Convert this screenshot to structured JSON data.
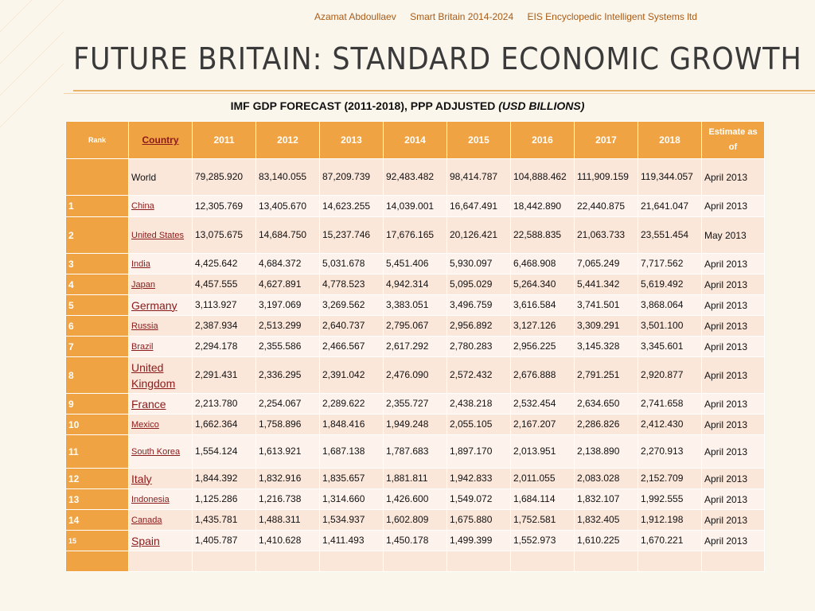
{
  "header": {
    "author": "Azamat Abdoullaev",
    "project": "Smart  Britain 2014-2024",
    "org": "EIS Encyclopedic Intelligent Systems ltd"
  },
  "title": "FUTURE BRITAIN: STANDARD ECONOMIC GROWTH",
  "subtitle": {
    "main": "IMF   GDP FORECAST (2011-2018), PPP ADJUSTED ",
    "italic": "(USD BILLIONS)"
  },
  "colors": {
    "header_bg": "#f0a342",
    "row_a": "#fbe6da",
    "row_b": "#fdf2ec",
    "country_link": "#8b1a1a"
  },
  "table": {
    "columns": [
      "Rank",
      "Country",
      "2011",
      "2012",
      "2013",
      "2014",
      "2015",
      "2016",
      "2017",
      "2018",
      "Estimate as of"
    ],
    "rows": [
      {
        "rank": "",
        "country": "World",
        "values": [
          "79,285.920",
          "83,140.055",
          "87,209.739",
          "92,483.482",
          "98,414.787",
          "104,888.462",
          "111,909.159",
          "119,344.057"
        ],
        "est": "April 2013"
      },
      {
        "rank": "1",
        "country": "China",
        "values": [
          "12,305.769",
          "13,405.670",
          "14,623.255",
          "14,039.001",
          "16,647.491",
          "18,442.890",
          "22,440.875",
          "21,641.047"
        ],
        "est": "April 2013"
      },
      {
        "rank": "2",
        "country": "United States",
        "values": [
          "13,075.675",
          "14,684.750",
          "15,237.746",
          "17,676.165",
          "20,126.421",
          "22,588.835",
          "21,063.733",
          "23,551.454"
        ],
        "est": "May 2013"
      },
      {
        "rank": "3",
        "country": "India",
        "values": [
          "4,425.642",
          "4,684.372",
          "5,031.678",
          "5,451.406",
          "5,930.097",
          "6,468.908",
          "7,065.249",
          "7,717.562"
        ],
        "est": "April 2013"
      },
      {
        "rank": "4",
        "country": "Japan",
        "values": [
          "4,457.555",
          "4,627.891",
          "4,778.523",
          "4,942.314",
          "5,095.029",
          "5,264.340",
          "5,441.342",
          "5,619.492"
        ],
        "est": "April 2013"
      },
      {
        "rank": "5",
        "country": "Germany",
        "values": [
          "3,113.927",
          "3,197.069",
          "3,269.562",
          "3,383.051",
          "3,496.759",
          "3,616.584",
          "3,741.501",
          "3,868.064"
        ],
        "est": "April 2013"
      },
      {
        "rank": "6",
        "country": "Russia",
        "values": [
          "2,387.934",
          "2,513.299",
          "2,640.737",
          "2,795.067",
          "2,956.892",
          "3,127.126",
          "3,309.291",
          "3,501.100"
        ],
        "est": "April 2013"
      },
      {
        "rank": "7",
        "country": "Brazil",
        "values": [
          "2,294.178",
          "2,355.586",
          "2,466.567",
          "2,617.292",
          "2,780.283",
          "2,956.225",
          "3,145.328",
          "3,345.601"
        ],
        "est": "April 2013"
      },
      {
        "rank": "8",
        "country": "United Kingdom",
        "values": [
          "2,291.431",
          "2,336.295",
          "2,391.042",
          "2,476.090",
          "2,572.432",
          "2,676.888",
          "2,791.251",
          "2,920.877"
        ],
        "est": "April 2013"
      },
      {
        "rank": "9",
        "country": "France",
        "values": [
          "2,213.780",
          "2,254.067",
          "2,289.622",
          "2,355.727",
          "2,438.218",
          "2,532.454",
          "2,634.650",
          "2,741.658"
        ],
        "est": "April 2013"
      },
      {
        "rank": "10",
        "country": "Mexico",
        "values": [
          "1,662.364",
          "1,758.896",
          "1,848.416",
          "1,949.248",
          "2,055.105",
          "2,167.207",
          "2,286.826",
          "2,412.430"
        ],
        "est": "April 2013"
      },
      {
        "rank": "11",
        "country": "South Korea",
        "values": [
          "1,554.124",
          "1,613.921",
          "1,687.138",
          "1,787.683",
          "1,897.170",
          "2,013.951",
          "2,138.890",
          "2,270.913"
        ],
        "est": "April 2013"
      },
      {
        "rank": "12",
        "country": "Italy",
        "values": [
          "1,844.392",
          "1,832.916",
          "1,835.657",
          "1,881.811",
          "1,942.833",
          "2,011.055",
          "2,083.028",
          "2,152.709"
        ],
        "est": "April 2013"
      },
      {
        "rank": "13",
        "country": "Indonesia",
        "values": [
          "1,125.286",
          "1,216.738",
          "1,314.660",
          "1,426.600",
          "1,549.072",
          "1,684.114",
          "1,832.107",
          "1,992.555"
        ],
        "est": "April 2013"
      },
      {
        "rank": "14",
        "country": "Canada",
        "values": [
          "1,435.781",
          "1,488.311",
          "1,534.937",
          "1,602.809",
          "1,675.880",
          "1,752.581",
          "1,832.405",
          "1,912.198"
        ],
        "est": "April 2013"
      },
      {
        "rank": "15",
        "country": "Spain",
        "values": [
          "1,405.787",
          "1,410.628",
          "1,411.493",
          "1,450.178",
          "1,499.399",
          "1,552.973",
          "1,610.225",
          "1,670.221"
        ],
        "est": "April 2013"
      },
      {
        "rank": "",
        "country": "",
        "values": [
          "",
          "",
          "",
          "",
          "",
          "",
          "",
          ""
        ],
        "est": ""
      }
    ]
  }
}
